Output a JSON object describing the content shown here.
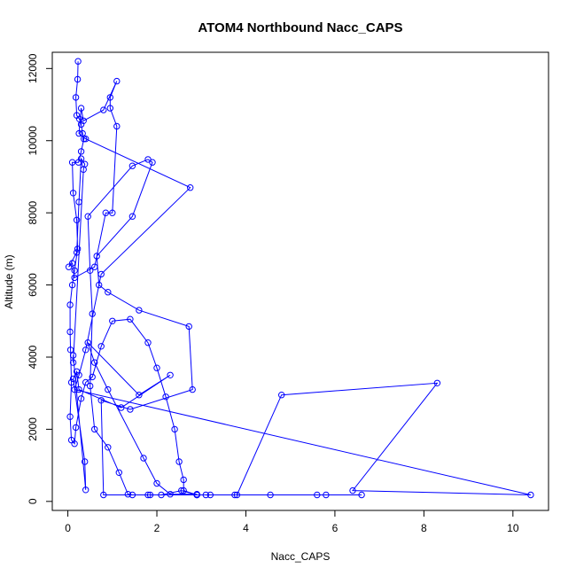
{
  "chart_data": {
    "type": "line",
    "title": "ATOM4 Northbound Nacc_CAPS",
    "xlabel": "Nacc_CAPS",
    "ylabel": "Altitude (m)",
    "xlim": [
      -0.35,
      10.8
    ],
    "ylim": [
      -250,
      12450
    ],
    "x_ticks": [
      0,
      2,
      4,
      6,
      8,
      10
    ],
    "y_ticks": [
      0,
      2000,
      4000,
      6000,
      8000,
      10000,
      12000
    ],
    "grid": false,
    "legend": "none",
    "series_color": "#0000ff",
    "series": [
      {
        "points": [
          [
            0.23,
            12200
          ],
          [
            0.22,
            11700
          ],
          [
            0.18,
            11200
          ],
          [
            0.2,
            10700
          ],
          [
            0.26,
            10600
          ],
          [
            0.3,
            10450
          ],
          [
            0.33,
            10200
          ],
          [
            0.36,
            10050
          ],
          [
            0.3,
            9700
          ],
          [
            0.24,
            9400
          ],
          [
            0.1,
            9400
          ],
          [
            0.12,
            8550
          ],
          [
            0.2,
            7800
          ],
          [
            0.22,
            7000
          ],
          [
            0.15,
            6400
          ],
          [
            0.1,
            6000
          ],
          [
            0.05,
            5450
          ],
          [
            0.05,
            4700
          ],
          [
            0.06,
            4200
          ],
          [
            0.08,
            3300
          ],
          [
            0.05,
            2350
          ],
          [
            0.08,
            1700
          ],
          [
            0.15,
            1600
          ],
          [
            0.18,
            2050
          ],
          [
            0.3,
            2850
          ],
          [
            0.4,
            3300
          ],
          [
            0.55,
            3450
          ],
          [
            0.75,
            4300
          ],
          [
            1.0,
            5000
          ],
          [
            1.4,
            5050
          ],
          [
            1.8,
            4400
          ],
          [
            2.0,
            3700
          ],
          [
            2.2,
            2900
          ],
          [
            2.4,
            2000
          ],
          [
            2.5,
            1100
          ],
          [
            2.6,
            600
          ],
          [
            2.6,
            300
          ],
          [
            2.9,
            180
          ],
          [
            3.2,
            180
          ],
          [
            3.75,
            180
          ],
          [
            4.55,
            180
          ],
          [
            5.6,
            180
          ],
          [
            5.8,
            180
          ],
          [
            6.6,
            180
          ],
          [
            0.8,
            180
          ],
          [
            0.75,
            2800
          ],
          [
            1.4,
            2550
          ],
          [
            2.8,
            3100
          ],
          [
            2.72,
            4850
          ],
          [
            1.6,
            5300
          ],
          [
            0.9,
            5800
          ],
          [
            0.7,
            6000
          ],
          [
            0.65,
            6800
          ],
          [
            1.45,
            7900
          ],
          [
            1.9,
            9400
          ],
          [
            1.8,
            9480
          ],
          [
            1.45,
            9300
          ],
          [
            0.45,
            7900
          ],
          [
            0.5,
            6400
          ],
          [
            0.55,
            5200
          ],
          [
            0.5,
            3200
          ],
          [
            0.6,
            2000
          ],
          [
            0.9,
            1500
          ],
          [
            1.15,
            800
          ],
          [
            1.35,
            200
          ],
          [
            1.45,
            180
          ],
          [
            1.8,
            180
          ],
          [
            1.85,
            180
          ],
          [
            2.1,
            180
          ],
          [
            2.55,
            300
          ],
          [
            2.9,
            180
          ],
          [
            3.1,
            180
          ],
          [
            3.8,
            180
          ],
          [
            4.8,
            2950
          ],
          [
            8.3,
            3280
          ],
          [
            6.4,
            300
          ],
          [
            10.4,
            180
          ],
          [
            0.15,
            3100
          ],
          [
            0.25,
            3500
          ],
          [
            0.4,
            4200
          ],
          [
            0.75,
            6300
          ],
          [
            2.75,
            8700
          ],
          [
            0.4,
            10050
          ],
          [
            0.25,
            10200
          ],
          [
            0.3,
            10900
          ],
          [
            0.35,
            10550
          ],
          [
            0.8,
            10850
          ],
          [
            1.1,
            11650
          ],
          [
            0.95,
            11200
          ],
          [
            0.95,
            10900
          ],
          [
            1.1,
            10400
          ],
          [
            1.0,
            8000
          ],
          [
            0.85,
            8000
          ],
          [
            0.6,
            6500
          ],
          [
            0.15,
            6200
          ],
          [
            0.1,
            6600
          ],
          [
            0.02,
            6500
          ],
          [
            0.2,
            6900
          ],
          [
            0.25,
            8300
          ],
          [
            0.3,
            9500
          ],
          [
            0.38,
            9350
          ],
          [
            0.35,
            9200
          ],
          [
            0.12,
            3850
          ],
          [
            0.12,
            4050
          ],
          [
            0.4,
            320
          ],
          [
            0.38,
            1100
          ],
          [
            0.12,
            3400
          ],
          [
            0.2,
            3600
          ],
          [
            0.25,
            3100
          ],
          [
            1.2,
            2600
          ],
          [
            2.3,
            3500
          ],
          [
            1.6,
            2950
          ],
          [
            0.45,
            4400
          ],
          [
            0.6,
            3850
          ],
          [
            0.9,
            3100
          ],
          [
            1.7,
            1200
          ],
          [
            2.0,
            500
          ],
          [
            2.3,
            200
          ],
          [
            2.9,
            200
          ]
        ]
      }
    ]
  }
}
